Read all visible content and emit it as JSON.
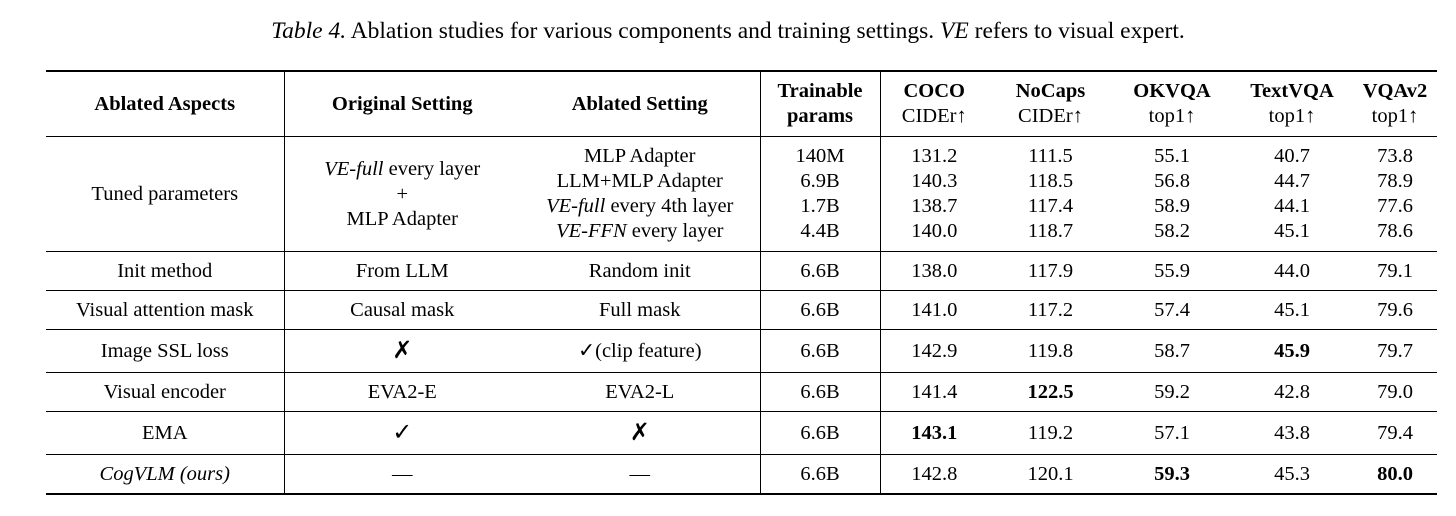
{
  "caption": {
    "label": "Table 4.",
    "text1": " Ablation studies for various components and training settings. ",
    "ve": "VE",
    "text2": " refers to visual expert."
  },
  "headers": {
    "aspect": "Ablated Aspects",
    "original": "Original Setting",
    "ablated": "Ablated Setting",
    "params_top": "Trainable",
    "params_bottom": "params",
    "coco_top": "COCO",
    "coco_bottom": "CIDEr↑",
    "nocaps_top": "NoCaps",
    "nocaps_bottom": "CIDEr↑",
    "okvqa_top": "OKVQA",
    "okvqa_bottom": "top1↑",
    "textvqa_top": "TextVQA",
    "textvqa_bottom": "top1↑",
    "vqav2_top": "VQAv2",
    "vqav2_bottom": "top1↑"
  },
  "tuned": {
    "aspect": "Tuned parameters",
    "original_em": "VE-full",
    "original_rest": " every layer",
    "original_plus": "+",
    "original_line3": "MLP Adapter",
    "ablated": [
      {
        "em": "",
        "rest": "MLP Adapter"
      },
      {
        "em": "",
        "rest": "LLM+MLP Adapter"
      },
      {
        "em": "VE-full",
        "rest": " every 4th layer"
      },
      {
        "em": "VE-FFN",
        "rest": " every layer"
      }
    ],
    "params": [
      "140M",
      "6.9B",
      "1.7B",
      "4.4B"
    ],
    "coco": [
      "131.2",
      "140.3",
      "138.7",
      "140.0"
    ],
    "nocaps": [
      "111.5",
      "118.5",
      "117.4",
      "118.7"
    ],
    "okvqa": [
      "55.1",
      "56.8",
      "58.9",
      "58.2"
    ],
    "textvqa": [
      "40.7",
      "44.7",
      "44.1",
      "45.1"
    ],
    "vqav2": [
      "73.8",
      "78.9",
      "77.6",
      "78.6"
    ]
  },
  "rows": [
    {
      "aspect": "Init method",
      "original": "From LLM",
      "ablated": "Random init",
      "params": "6.6B",
      "coco": "138.0",
      "nocaps": "117.9",
      "okvqa": "55.9",
      "textvqa": "44.0",
      "vqav2": "79.1"
    },
    {
      "aspect": "Visual attention mask",
      "original": "Causal mask",
      "ablated": "Full mask",
      "params": "6.6B",
      "coco": "141.0",
      "nocaps": "117.2",
      "okvqa": "57.4",
      "textvqa": "45.1",
      "vqav2": "79.6"
    },
    {
      "aspect": "Image SSL loss",
      "original": "✗",
      "ablated": "✓(clip feature)",
      "params": "6.6B",
      "coco": "142.9",
      "nocaps": "119.8",
      "okvqa": "58.7",
      "textvqa": "45.9",
      "vqav2": "79.7"
    },
    {
      "aspect": "Visual encoder",
      "original": "EVA2-E",
      "ablated": "EVA2-L",
      "params": "6.6B",
      "coco": "141.4",
      "nocaps": "122.5",
      "okvqa": "59.2",
      "textvqa": "42.8",
      "vqav2": "79.0"
    },
    {
      "aspect": "EMA",
      "original": "✓",
      "ablated": "✗",
      "params": "6.6B",
      "coco": "143.1",
      "nocaps": "119.2",
      "okvqa": "57.1",
      "textvqa": "43.8",
      "vqav2": "79.4"
    },
    {
      "aspect": "CogVLM (ours)",
      "original": "—",
      "ablated": "—",
      "params": "6.6B",
      "coco": "142.8",
      "nocaps": "120.1",
      "okvqa": "59.3",
      "textvqa": "45.3",
      "vqav2": "80.0"
    }
  ]
}
